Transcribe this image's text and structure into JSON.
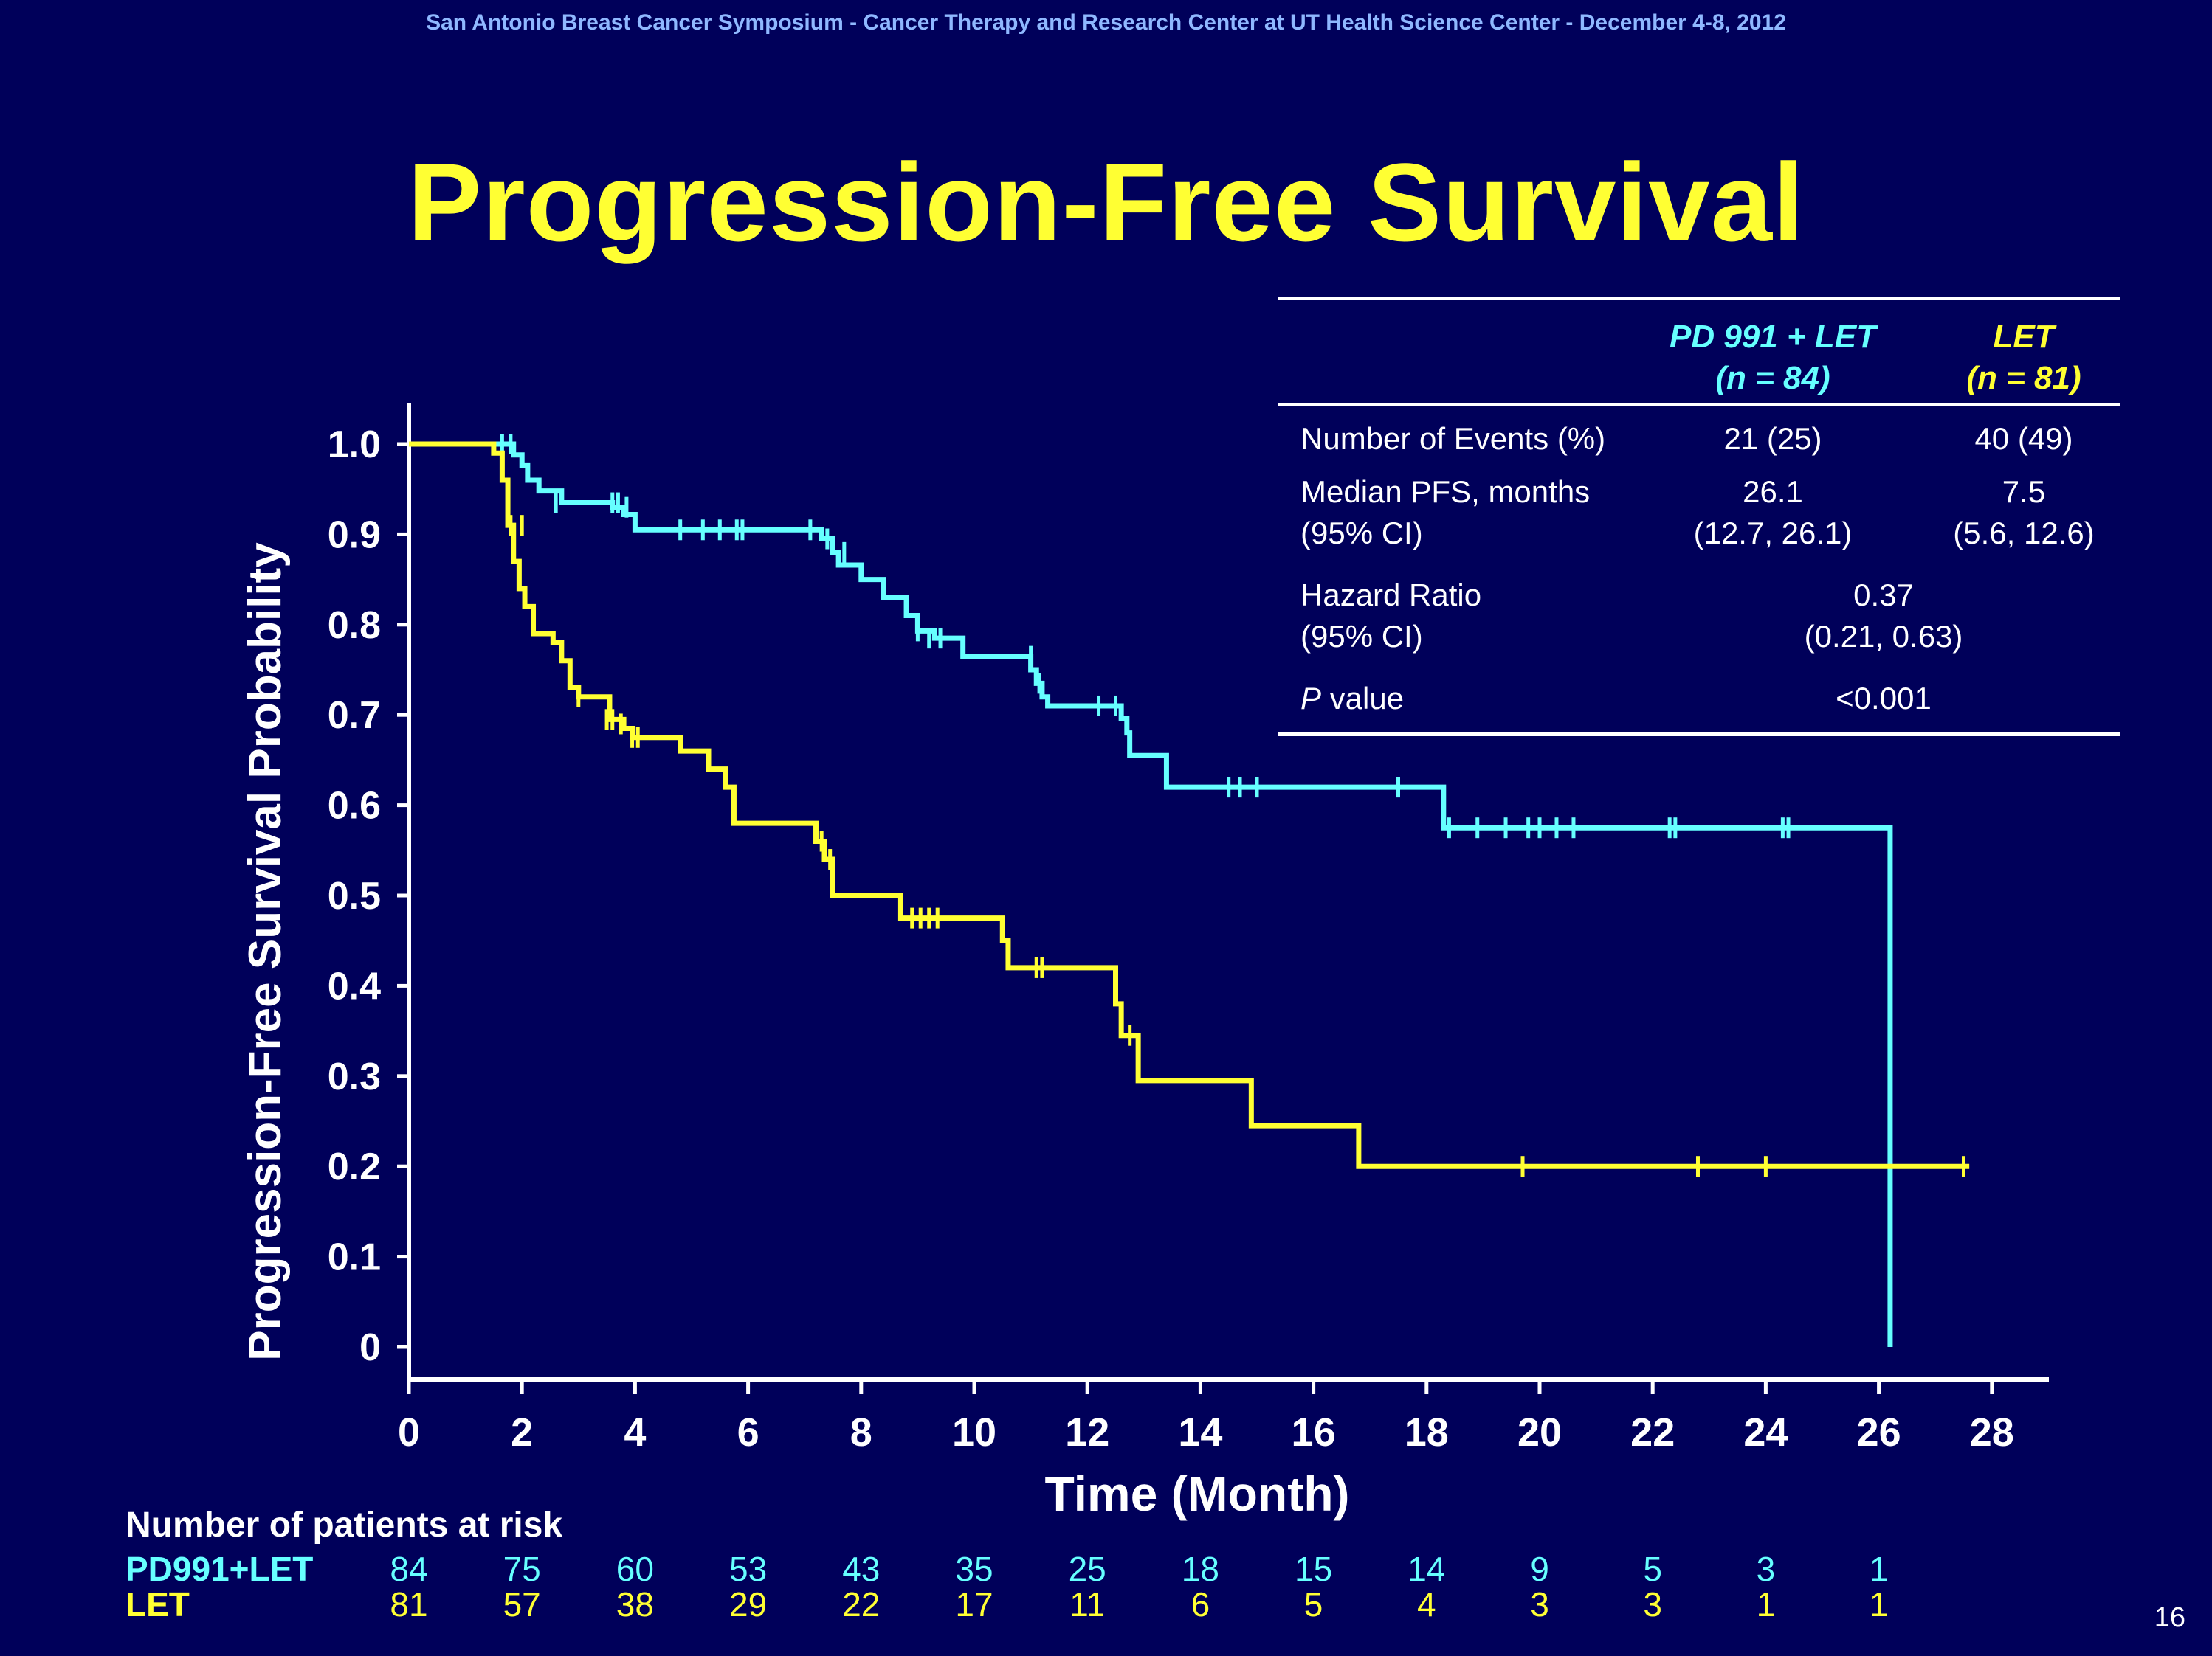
{
  "header": "San Antonio Breast Cancer Symposium - Cancer Therapy and Research Center at UT Health Science Center - December 4-8, 2012",
  "title": "Progression-Free Survival",
  "page_number": "16",
  "stats_table": {
    "col_a": [
      "PD 991 + LET",
      "(n = 84)"
    ],
    "col_b": [
      "LET",
      "(n = 81)"
    ],
    "events": {
      "label": "Number of Events (%)",
      "a": "21 (25)",
      "b": "40 (49)"
    },
    "median": {
      "label1": "Median PFS, months",
      "label2": "(95% CI)",
      "a1": "26.1",
      "a2": "(12.7, 26.1)",
      "b1": "7.5",
      "b2": "(5.6, 12.6)"
    },
    "hazard": {
      "label1": "Hazard Ratio",
      "label2": "(95% CI)",
      "v1": "0.37",
      "v2": "(0.21, 0.63)"
    },
    "pvalue": {
      "label_italic": "P",
      "label_rest": " value",
      "v": "<0.001"
    }
  },
  "risk_table": {
    "title": "Number of patients at risk",
    "rows": [
      {
        "label": "PD991+LET",
        "color": "#66ffff",
        "values": [
          "84",
          "75",
          "60",
          "53",
          "43",
          "35",
          "25",
          "18",
          "15",
          "14",
          "9",
          "5",
          "3",
          "1"
        ]
      },
      {
        "label": "LET",
        "color": "#ffff33",
        "values": [
          "81",
          "57",
          "38",
          "29",
          "22",
          "17",
          "11",
          "6",
          "5",
          "4",
          "3",
          "3",
          "1",
          "1"
        ]
      }
    ]
  },
  "chart_data": {
    "type": "line",
    "title": "Progression-Free Survival",
    "xlabel": "Time (Month)",
    "ylabel": "Progression-Free Survival Probability",
    "xlim": [
      0,
      29
    ],
    "ylim": [
      0,
      1.0
    ],
    "xticks": [
      0,
      2,
      4,
      6,
      8,
      10,
      12,
      14,
      16,
      18,
      20,
      22,
      24,
      26,
      28
    ],
    "yticks": [
      {
        "v": 0,
        "label": "0"
      },
      {
        "v": 0.1,
        "label": "0.1"
      },
      {
        "v": 0.2,
        "label": "0.2"
      },
      {
        "v": 0.3,
        "label": "0.3"
      },
      {
        "v": 0.4,
        "label": "0.4"
      },
      {
        "v": 0.5,
        "label": "0.5"
      },
      {
        "v": 0.6,
        "label": "0.6"
      },
      {
        "v": 0.7,
        "label": "0.7"
      },
      {
        "v": 0.8,
        "label": "0.8"
      },
      {
        "v": 0.9,
        "label": "0.9"
      },
      {
        "v": 1.0,
        "label": "1.0"
      }
    ],
    "grid": false,
    "series": [
      {
        "name": "PD 991 + LET",
        "color": "#66ffff",
        "steps": [
          [
            0,
            1.0
          ],
          [
            1.85,
            0.988
          ],
          [
            2.0,
            0.976
          ],
          [
            2.1,
            0.96
          ],
          [
            2.3,
            0.948
          ],
          [
            2.7,
            0.935
          ],
          [
            3.6,
            0.93
          ],
          [
            3.8,
            0.922
          ],
          [
            4.0,
            0.905
          ],
          [
            7.3,
            0.895
          ],
          [
            7.5,
            0.88
          ],
          [
            7.6,
            0.866
          ],
          [
            8.0,
            0.85
          ],
          [
            8.4,
            0.83
          ],
          [
            8.8,
            0.81
          ],
          [
            9.0,
            0.793
          ],
          [
            9.3,
            0.785
          ],
          [
            9.8,
            0.765
          ],
          [
            11.0,
            0.75
          ],
          [
            11.1,
            0.735
          ],
          [
            11.2,
            0.72
          ],
          [
            11.3,
            0.71
          ],
          [
            12.6,
            0.696
          ],
          [
            12.7,
            0.68
          ],
          [
            12.75,
            0.655
          ],
          [
            13.4,
            0.62
          ],
          [
            18.3,
            0.575
          ],
          [
            26.2,
            0.0
          ]
        ],
        "end": 26.2,
        "censors": [
          [
            1.65,
            1.0
          ],
          [
            1.8,
            1.0
          ],
          [
            2.6,
            0.935
          ],
          [
            3.6,
            0.935
          ],
          [
            3.7,
            0.935
          ],
          [
            3.85,
            0.93
          ],
          [
            4.8,
            0.905
          ],
          [
            5.2,
            0.905
          ],
          [
            5.5,
            0.905
          ],
          [
            5.8,
            0.905
          ],
          [
            5.9,
            0.905
          ],
          [
            7.1,
            0.905
          ],
          [
            7.4,
            0.895
          ],
          [
            7.7,
            0.88
          ],
          [
            9.0,
            0.793
          ],
          [
            9.2,
            0.785
          ],
          [
            9.4,
            0.785
          ],
          [
            11.0,
            0.765
          ],
          [
            11.15,
            0.735
          ],
          [
            12.2,
            0.71
          ],
          [
            12.5,
            0.71
          ],
          [
            14.5,
            0.62
          ],
          [
            14.7,
            0.62
          ],
          [
            15.0,
            0.62
          ],
          [
            17.5,
            0.62
          ],
          [
            18.4,
            0.575
          ],
          [
            18.9,
            0.575
          ],
          [
            19.4,
            0.575
          ],
          [
            19.8,
            0.575
          ],
          [
            20.0,
            0.575
          ],
          [
            20.3,
            0.575
          ],
          [
            20.6,
            0.575
          ],
          [
            22.3,
            0.575
          ],
          [
            22.4,
            0.575
          ],
          [
            24.3,
            0.575
          ],
          [
            24.4,
            0.575
          ]
        ]
      },
      {
        "name": "LET",
        "color": "#ffff33",
        "steps": [
          [
            0,
            1.0
          ],
          [
            1.5,
            0.99
          ],
          [
            1.65,
            0.96
          ],
          [
            1.75,
            0.91
          ],
          [
            1.85,
            0.87
          ],
          [
            1.95,
            0.84
          ],
          [
            2.05,
            0.82
          ],
          [
            2.2,
            0.79
          ],
          [
            2.55,
            0.78
          ],
          [
            2.7,
            0.76
          ],
          [
            2.85,
            0.73
          ],
          [
            3.0,
            0.72
          ],
          [
            3.55,
            0.695
          ],
          [
            3.8,
            0.685
          ],
          [
            3.95,
            0.675
          ],
          [
            4.8,
            0.66
          ],
          [
            5.3,
            0.64
          ],
          [
            5.6,
            0.62
          ],
          [
            5.75,
            0.58
          ],
          [
            7.2,
            0.56
          ],
          [
            7.35,
            0.54
          ],
          [
            7.5,
            0.5
          ],
          [
            8.7,
            0.475
          ],
          [
            10.5,
            0.45
          ],
          [
            10.6,
            0.42
          ],
          [
            12.5,
            0.38
          ],
          [
            12.6,
            0.345
          ],
          [
            12.9,
            0.295
          ],
          [
            14.9,
            0.245
          ],
          [
            16.8,
            0.2
          ]
        ],
        "end": 27.6,
        "censors": [
          [
            1.8,
            0.91
          ],
          [
            2.0,
            0.91
          ],
          [
            3.0,
            0.72
          ],
          [
            3.5,
            0.695
          ],
          [
            3.6,
            0.695
          ],
          [
            3.75,
            0.69
          ],
          [
            3.95,
            0.675
          ],
          [
            4.05,
            0.675
          ],
          [
            7.3,
            0.56
          ],
          [
            7.45,
            0.54
          ],
          [
            8.9,
            0.475
          ],
          [
            9.05,
            0.475
          ],
          [
            9.2,
            0.475
          ],
          [
            9.35,
            0.475
          ],
          [
            11.1,
            0.42
          ],
          [
            11.2,
            0.42
          ],
          [
            12.75,
            0.345
          ],
          [
            19.7,
            0.2
          ],
          [
            22.8,
            0.2
          ],
          [
            24.0,
            0.2
          ],
          [
            27.5,
            0.2
          ]
        ]
      }
    ]
  }
}
